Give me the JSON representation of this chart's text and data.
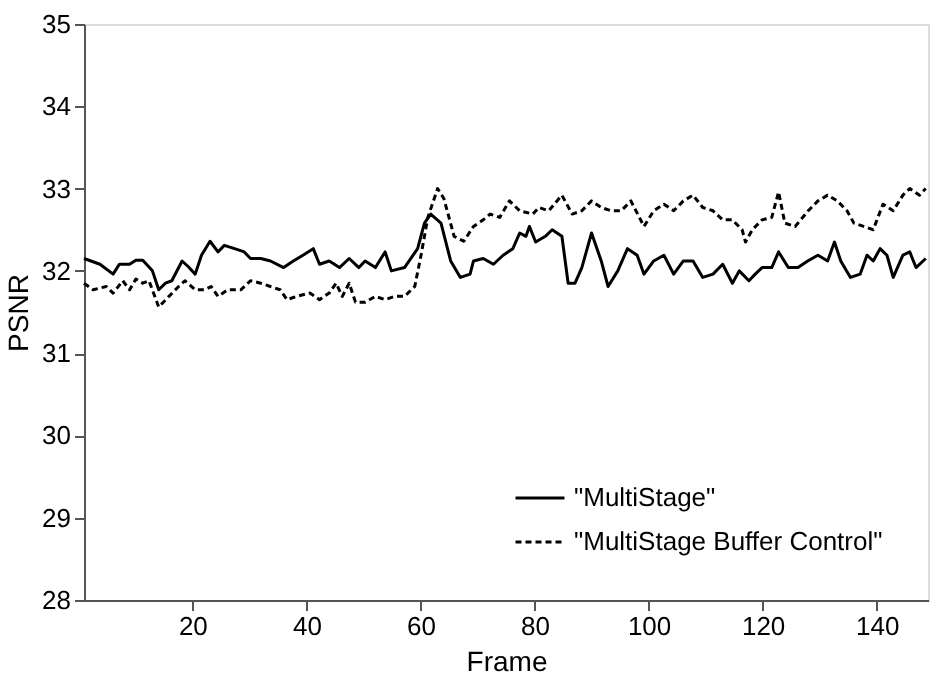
{
  "chart_data": {
    "type": "line",
    "xlabel": "Frame",
    "ylabel": "PSNR",
    "xlim": [
      1,
      149
    ],
    "ylim": [
      28,
      35
    ],
    "xticks": [
      20,
      40,
      60,
      80,
      100,
      120,
      140
    ],
    "yticks": [
      28,
      29,
      30,
      31,
      32,
      33,
      34,
      35
    ],
    "grid": false,
    "legend": "bottom right",
    "marker": "none",
    "series": [
      {
        "name": "\"MultiStage\"",
        "color": "#000000",
        "line_style": "solid",
        "x": [
          1,
          3.8,
          6.1,
          7.2,
          9,
          10.1,
          11.3,
          13,
          14.1,
          15.3,
          16.4,
          18.2,
          19.3,
          20.5,
          21.6,
          23.1,
          24.5,
          25.6,
          27.4,
          29.1,
          30.2,
          32,
          33.7,
          36,
          37.7,
          39.4,
          41.2,
          42.3,
          44,
          45.8,
          47.5,
          49.2,
          50.3,
          52.1,
          53.8,
          54.9,
          57.2,
          59.5,
          60.7,
          61.8,
          63.6,
          65.3,
          67,
          68.7,
          69.3,
          71,
          72.8,
          74.5,
          76.2,
          77.4,
          78.5,
          79.1,
          80.2,
          81.9,
          83.1,
          84.8,
          85.9,
          87.1,
          88.3,
          90,
          91.7,
          92.9,
          94.6,
          96.3,
          98,
          99.2,
          100.9,
          102.7,
          104.4,
          106.1,
          107.8,
          109.5,
          111.3,
          113,
          114.7,
          115.9,
          117.6,
          118.7,
          119.9,
          121.6,
          122.8,
          124.5,
          126.2,
          127.9,
          129.7,
          131.4,
          132.6,
          133.7,
          135.4,
          137.1,
          138.3,
          139.4,
          140.6,
          141.8,
          142.9,
          144.6,
          145.8,
          146.9,
          148.6
        ],
        "values": [
          32.15,
          32.08,
          31.96,
          32.08,
          32.08,
          32.13,
          32.13,
          32.0,
          31.77,
          31.85,
          31.88,
          32.12,
          32.05,
          31.96,
          32.19,
          32.36,
          32.23,
          32.31,
          32.27,
          32.23,
          32.15,
          32.15,
          32.12,
          32.04,
          32.12,
          32.19,
          32.27,
          32.08,
          32.12,
          32.04,
          32.15,
          32.04,
          32.12,
          32.04,
          32.23,
          32.0,
          32.04,
          32.27,
          32.58,
          32.69,
          32.58,
          32.12,
          31.92,
          31.96,
          32.12,
          32.15,
          32.08,
          32.19,
          32.27,
          32.46,
          32.42,
          32.54,
          32.35,
          32.42,
          32.5,
          32.42,
          31.85,
          31.85,
          32.04,
          32.46,
          32.12,
          31.81,
          32.0,
          32.27,
          32.19,
          31.96,
          32.12,
          32.19,
          31.96,
          32.12,
          32.12,
          31.92,
          31.96,
          32.08,
          31.85,
          32.0,
          31.88,
          31.96,
          32.04,
          32.04,
          32.23,
          32.04,
          32.04,
          32.12,
          32.19,
          32.12,
          32.35,
          32.12,
          31.92,
          31.96,
          32.19,
          32.12,
          32.27,
          32.19,
          31.92,
          32.19,
          32.23,
          32.04,
          32.15
        ]
      },
      {
        "name": "\"MultiStage Buffer Control\"",
        "color": "#000000",
        "line_style": "dashed",
        "x": [
          1,
          2.6,
          4.9,
          6.1,
          7.8,
          9,
          10.1,
          11.3,
          12.4,
          14.1,
          15.9,
          17.6,
          18.7,
          20.5,
          22.2,
          23.3,
          24.5,
          26.2,
          28.5,
          30.2,
          32,
          33.7,
          35.4,
          36.6,
          38.3,
          40.6,
          42.3,
          44,
          45.2,
          46.3,
          47.5,
          48.6,
          50.3,
          52.1,
          53.8,
          55.5,
          57.2,
          59,
          60.1,
          61.3,
          63,
          64.1,
          65.9,
          67.6,
          69.3,
          71,
          72.2,
          73.9,
          75.6,
          77.4,
          79.7,
          80.8,
          82.5,
          84.8,
          86.6,
          88.3,
          90,
          91.7,
          93.4,
          95.2,
          96.9,
          99.2,
          100.9,
          102.7,
          104.4,
          106.1,
          107.8,
          109.5,
          111.3,
          113,
          114.7,
          116.4,
          117,
          118.2,
          119.9,
          121.6,
          122.8,
          123.9,
          125.7,
          128,
          129.7,
          131.4,
          133.1,
          134.8,
          136,
          137.7,
          139.4,
          141.1,
          142.9,
          144.6,
          145.8,
          147.5,
          148.6
        ],
        "values": [
          31.85,
          31.77,
          31.81,
          31.73,
          31.88,
          31.77,
          31.9,
          31.85,
          31.88,
          31.56,
          31.69,
          31.81,
          31.88,
          31.77,
          31.77,
          31.81,
          31.69,
          31.77,
          31.77,
          31.88,
          31.85,
          31.81,
          31.77,
          31.65,
          31.69,
          31.73,
          31.65,
          31.73,
          31.85,
          31.69,
          31.85,
          31.62,
          31.62,
          31.69,
          31.65,
          31.69,
          31.69,
          31.81,
          32.19,
          32.65,
          33.0,
          32.88,
          32.42,
          32.36,
          32.54,
          32.62,
          32.69,
          32.65,
          32.85,
          32.73,
          32.69,
          32.77,
          32.73,
          32.92,
          32.69,
          32.73,
          32.85,
          32.77,
          32.73,
          32.73,
          32.85,
          32.54,
          32.73,
          32.81,
          32.73,
          32.85,
          32.92,
          32.77,
          32.73,
          32.62,
          32.62,
          32.5,
          32.35,
          32.5,
          32.62,
          32.65,
          32.96,
          32.58,
          32.54,
          32.73,
          32.85,
          32.92,
          32.85,
          32.73,
          32.58,
          32.54,
          32.5,
          32.81,
          32.73,
          32.92,
          33.0,
          32.92,
          33.0
        ]
      }
    ]
  }
}
